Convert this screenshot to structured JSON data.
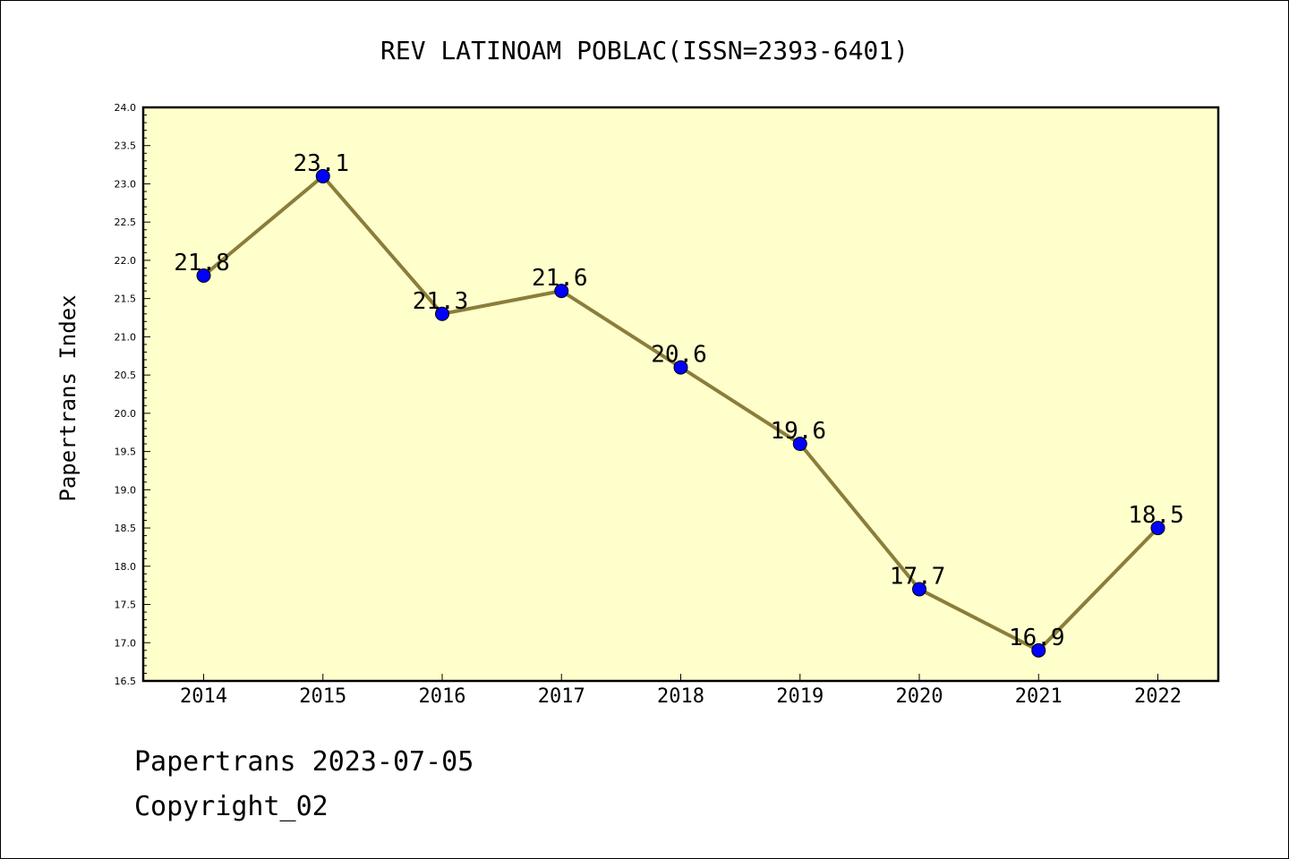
{
  "footer": {
    "line1": "Papertrans 2023-07-05",
    "line2": "Copyright_02"
  },
  "chart_data": {
    "type": "line",
    "title": "REV LATINOAM POBLAC(ISSN=2393-6401)",
    "xlabel": "",
    "ylabel": "Papertrans Index",
    "categories": [
      "2014",
      "2015",
      "2016",
      "2017",
      "2018",
      "2019",
      "2020",
      "2021",
      "2022"
    ],
    "series": [
      {
        "values": [
          21.8,
          23.1,
          21.3,
          21.6,
          20.6,
          19.6,
          17.7,
          16.9,
          18.5
        ]
      }
    ],
    "data_labels": [
      "21.8",
      "23.1",
      "21.3",
      "21.6",
      "20.6",
      "19.6",
      "17.7",
      "16.9",
      "18.5"
    ],
    "ylim": [
      16.5,
      24.0
    ],
    "yticks": [
      "16.5",
      "17.0",
      "17.5",
      "18.0",
      "18.5",
      "19.0",
      "19.5",
      "20.0",
      "20.5",
      "21.0",
      "21.5",
      "22.0",
      "22.5",
      "23.0",
      "23.5",
      "24.0"
    ],
    "grid": false,
    "legend": "none",
    "colors": {
      "plot_background": "#ffffcc",
      "line": "#8b7d3a",
      "marker": "#0000ff"
    }
  }
}
